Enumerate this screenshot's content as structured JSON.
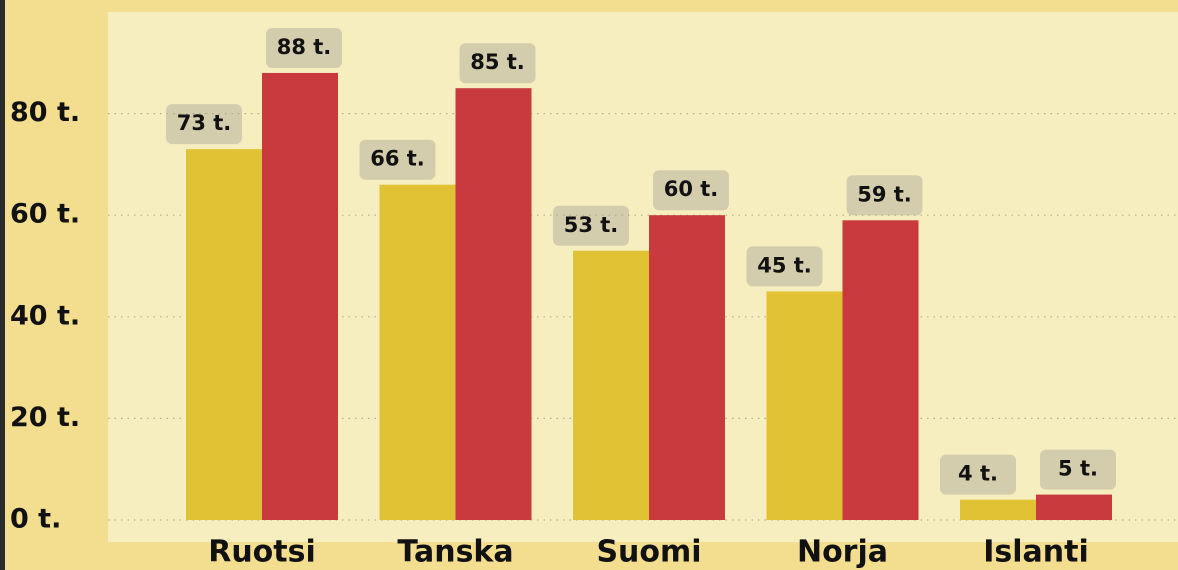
{
  "chart_data": {
    "type": "bar",
    "categories": [
      "Ruotsi",
      "Tanska",
      "Suomi",
      "Norja",
      "Islanti"
    ],
    "series": [
      {
        "color": "#e0c234",
        "values": [
          73,
          66,
          53,
          45,
          4
        ],
        "value_labels": [
          "73 t.",
          "66 t.",
          "53 t.",
          "45 t.",
          "4 t."
        ]
      },
      {
        "color": "#c83a3d",
        "values": [
          88,
          85,
          60,
          59,
          5
        ],
        "value_labels": [
          "88 t.",
          "85 t.",
          "60 t.",
          "59 t.",
          "5 t."
        ]
      }
    ],
    "ylim": [
      0,
      100
    ],
    "yticks": [
      {
        "value": 0,
        "label": "0 t."
      },
      {
        "value": 20,
        "label": "20 t."
      },
      {
        "value": 40,
        "label": "40 t."
      },
      {
        "value": 60,
        "label": "60 t."
      },
      {
        "value": 80,
        "label": "80 t."
      }
    ],
    "grid": true
  }
}
